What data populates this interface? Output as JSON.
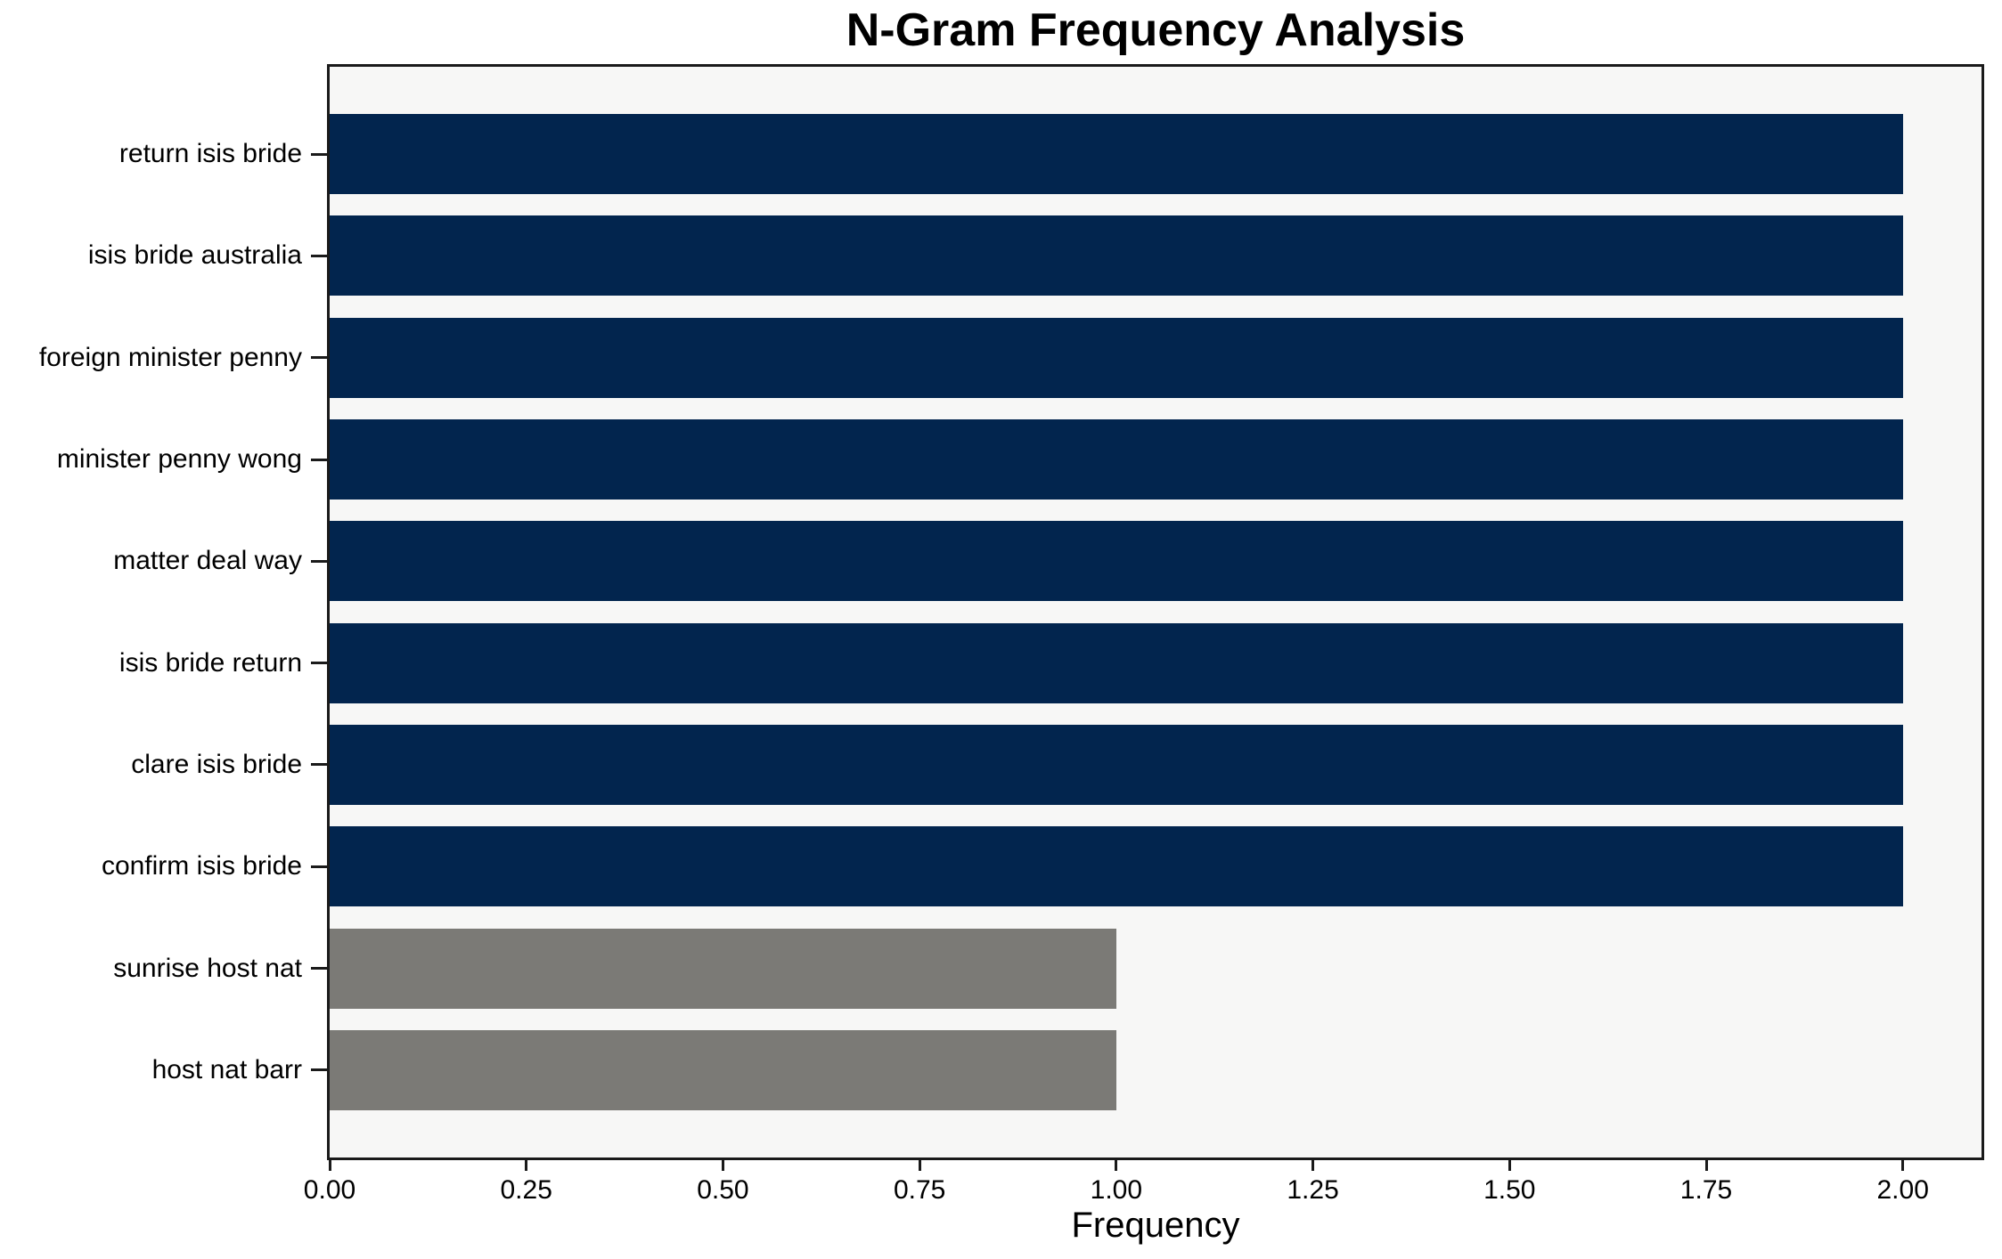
{
  "chart_data": {
    "type": "bar",
    "orientation": "horizontal",
    "title": "N-Gram Frequency Analysis",
    "xlabel": "Frequency",
    "ylabel": "",
    "categories": [
      "return isis bride",
      "isis bride australia",
      "foreign minister penny",
      "minister penny wong",
      "matter deal way",
      "isis bride return",
      "clare isis bride",
      "confirm isis bride",
      "sunrise host nat",
      "host nat barr"
    ],
    "values": [
      2,
      2,
      2,
      2,
      2,
      2,
      2,
      2,
      1,
      1
    ],
    "bar_colors": [
      "#02254e",
      "#02254e",
      "#02254e",
      "#02254e",
      "#02254e",
      "#02254e",
      "#02254e",
      "#02254e",
      "#7b7a76",
      "#7b7a76"
    ],
    "xlim": [
      0,
      2.1
    ],
    "xticks": [
      {
        "value": 0.0,
        "label": "0.00"
      },
      {
        "value": 0.25,
        "label": "0.25"
      },
      {
        "value": 0.5,
        "label": "0.50"
      },
      {
        "value": 0.75,
        "label": "0.75"
      },
      {
        "value": 1.0,
        "label": "1.00"
      },
      {
        "value": 1.25,
        "label": "1.25"
      },
      {
        "value": 1.5,
        "label": "1.50"
      },
      {
        "value": 1.75,
        "label": "1.75"
      },
      {
        "value": 2.0,
        "label": "2.00"
      }
    ],
    "grid": false,
    "legend": "none",
    "colors": {
      "bar_primary": "#02254e",
      "bar_secondary": "#7b7a76",
      "plot_background": "#f7f7f6",
      "figure_background": "#ffffff",
      "axis_line": "#1a1a1a",
      "text": "#000000"
    }
  }
}
